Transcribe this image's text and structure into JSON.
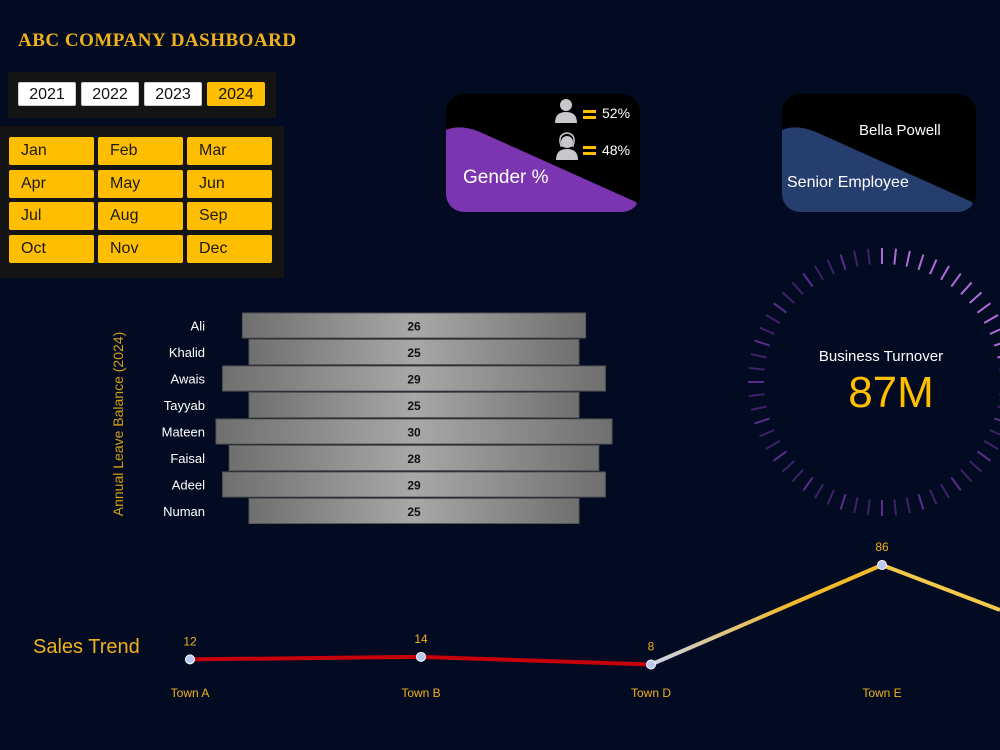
{
  "dashboard": {
    "title": "ABC COMPANY DASHBOARD"
  },
  "years": {
    "items": [
      "2021",
      "2022",
      "2023",
      "2024"
    ],
    "active": "2024"
  },
  "months": {
    "items": [
      "Jan",
      "Feb",
      "Mar",
      "Apr",
      "May",
      "Jun",
      "Jul",
      "Aug",
      "Sep",
      "Oct",
      "Nov",
      "Dec"
    ]
  },
  "gender_card": {
    "label": "Gender %",
    "male_pct": "52%",
    "female_pct": "48%",
    "accent": "#7b35b0"
  },
  "employee_card": {
    "name": "Bella Powell",
    "label": "Senior Employee",
    "accent": "#253e6e"
  },
  "turnover": {
    "title": "Business Turnover",
    "value": "87M"
  },
  "sales_trend_title": "Sales Trend",
  "chart_data": [
    {
      "type": "bar",
      "ylabel": "Annual Leave Balance (2024)",
      "categories": [
        "Ali",
        "Khalid",
        "Awais",
        "Tayyab",
        "Mateen",
        "Faisal",
        "Adeel",
        "Numan"
      ],
      "values": [
        26,
        25,
        29,
        25,
        30,
        28,
        29,
        25
      ]
    },
    {
      "type": "line",
      "categories": [
        "Town A",
        "Town B",
        "Town D",
        "Town E"
      ],
      "values": [
        12,
        14,
        8,
        86
      ]
    }
  ]
}
